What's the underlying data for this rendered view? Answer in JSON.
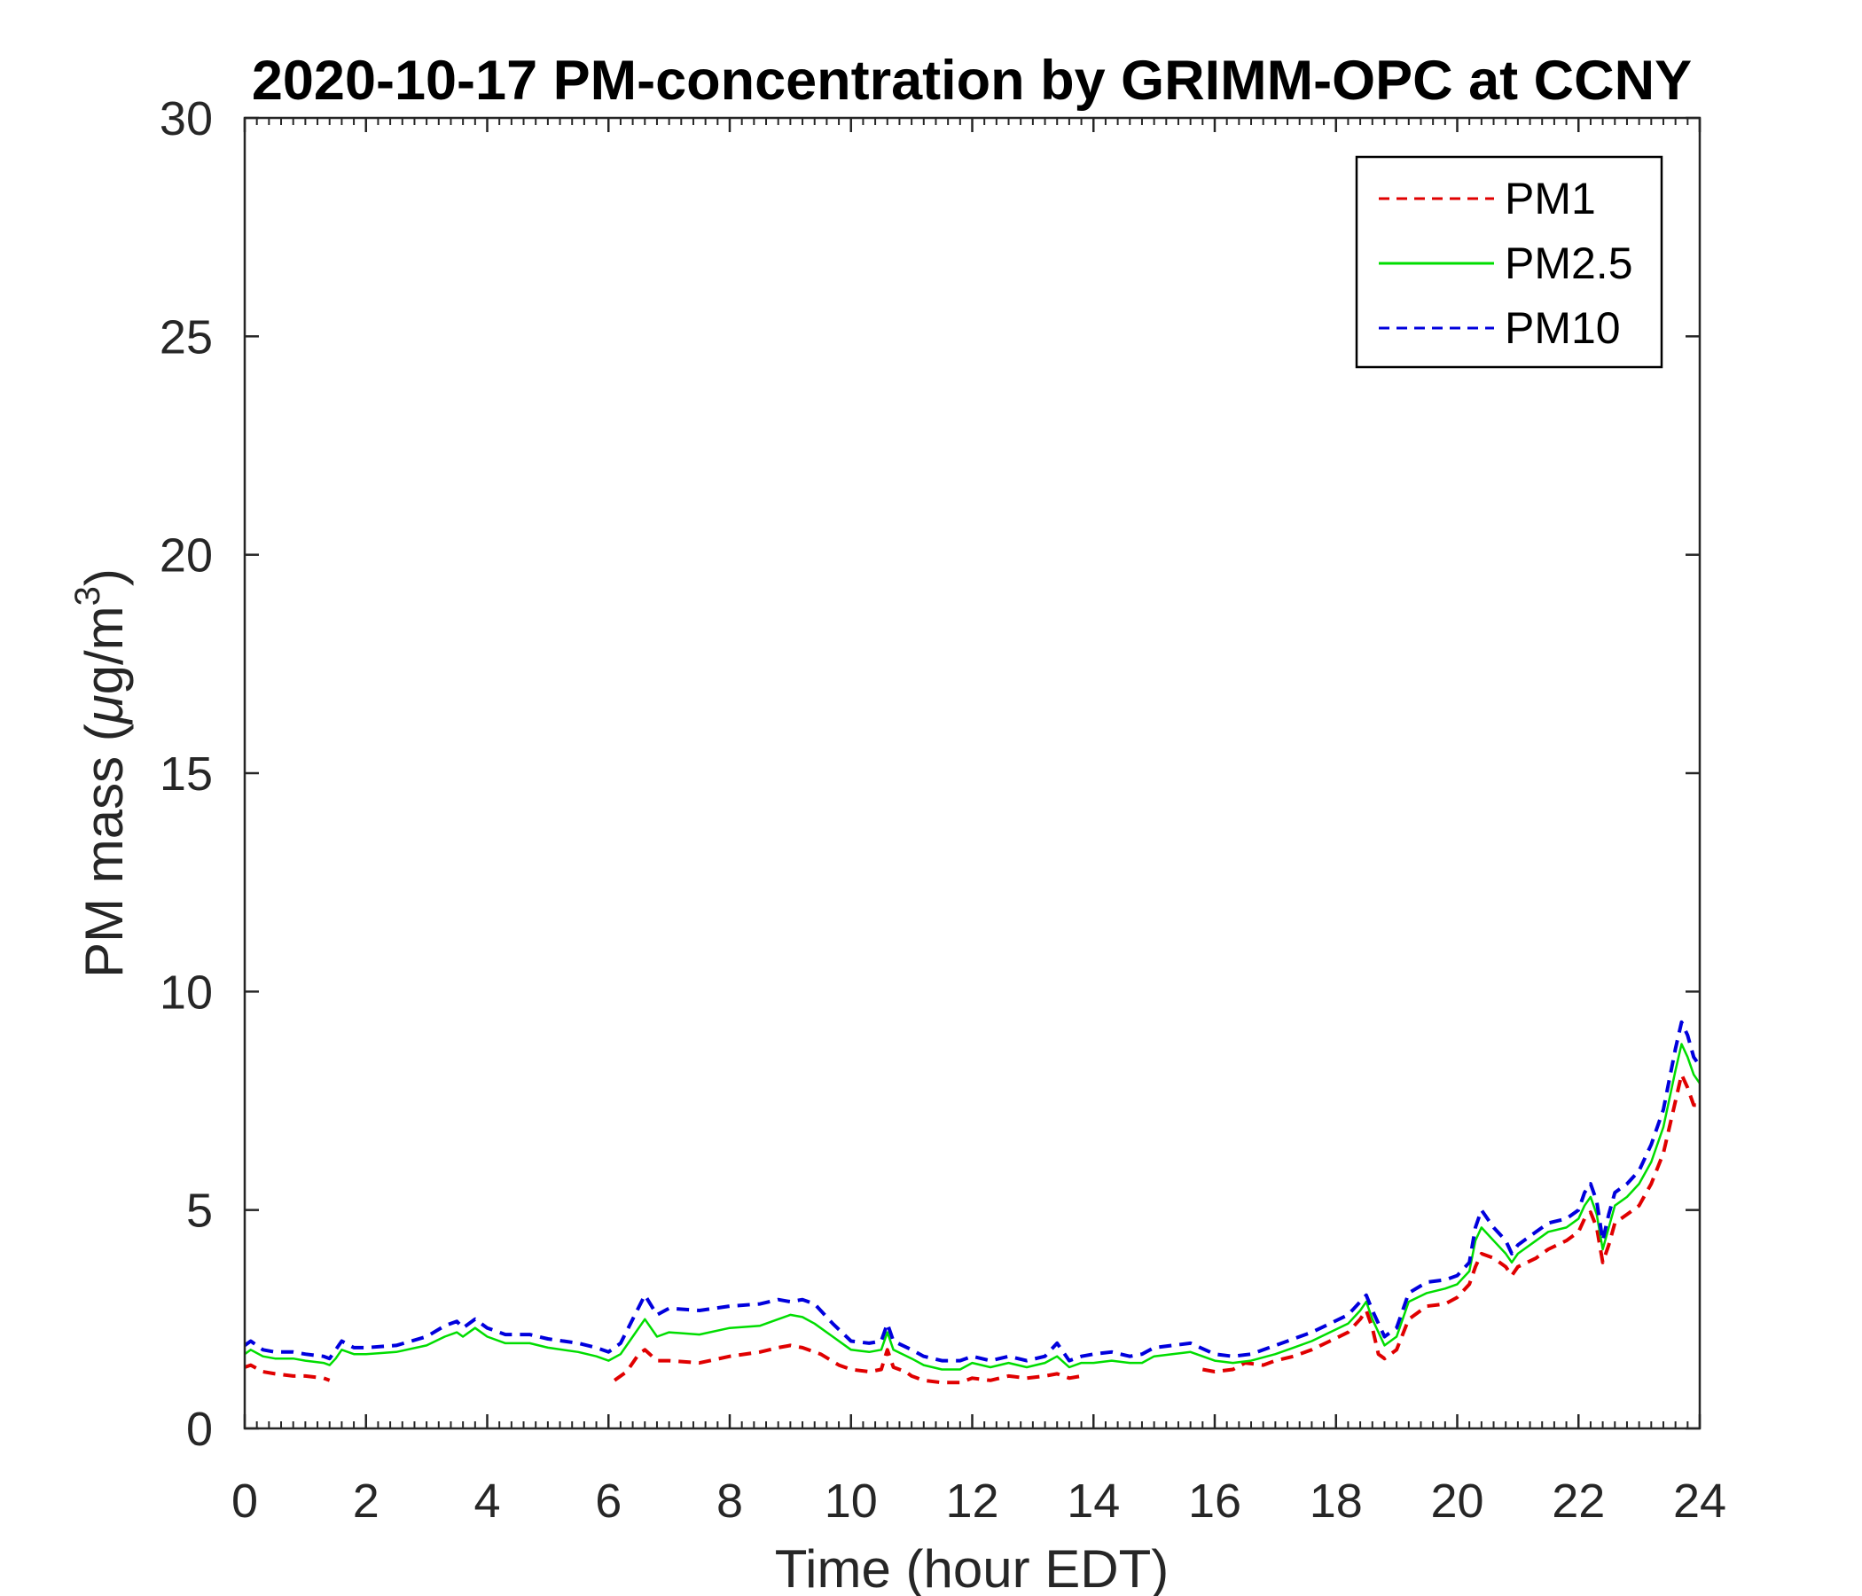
{
  "chart_data": {
    "type": "line",
    "title": "2020-10-17 PM-concentration by GRIMM-OPC at CCNY",
    "xlabel": "Time (hour EDT)",
    "ylabel_main": "PM mass (",
    "ylabel_mu": "μ",
    "ylabel_unit": "g/m",
    "ylabel_sup": "3",
    "ylabel_close": ")",
    "xlim": [
      0,
      24
    ],
    "ylim": [
      0,
      30
    ],
    "x_ticks": [
      0,
      2,
      4,
      6,
      8,
      10,
      12,
      14,
      16,
      18,
      20,
      22,
      24
    ],
    "y_ticks": [
      0,
      5,
      10,
      15,
      20,
      25,
      30
    ],
    "x_tick_labels": [
      "0",
      "2",
      "4",
      "6",
      "8",
      "10",
      "12",
      "14",
      "16",
      "18",
      "20",
      "22",
      "24"
    ],
    "y_tick_labels": [
      "0",
      "5",
      "10",
      "15",
      "20",
      "25",
      "30"
    ],
    "grid": false,
    "legend_position": "top-right",
    "series": [
      {
        "name": "PM1",
        "color": "#e00000",
        "style": "dashed",
        "points": [
          [
            0,
            1.4
          ],
          [
            0.1,
            1.45
          ],
          [
            0.3,
            1.3
          ],
          [
            0.5,
            1.25
          ],
          [
            0.8,
            1.2
          ],
          [
            1.0,
            1.2
          ],
          [
            1.3,
            1.15
          ],
          [
            1.4,
            1.1
          ],
          null,
          [
            6.1,
            1.1
          ],
          [
            6.3,
            1.3
          ],
          [
            6.5,
            1.7
          ],
          [
            6.6,
            1.8
          ],
          [
            6.8,
            1.55
          ],
          [
            7.0,
            1.55
          ],
          [
            7.5,
            1.5
          ],
          [
            8.0,
            1.65
          ],
          [
            8.5,
            1.75
          ],
          [
            8.8,
            1.85
          ],
          [
            9.0,
            1.9
          ],
          [
            9.2,
            1.85
          ],
          [
            9.5,
            1.7
          ],
          [
            9.8,
            1.45
          ],
          [
            10.0,
            1.35
          ],
          [
            10.3,
            1.3
          ],
          [
            10.5,
            1.35
          ],
          [
            10.6,
            1.8
          ],
          [
            10.7,
            1.4
          ],
          [
            10.9,
            1.3
          ],
          [
            11.0,
            1.2
          ],
          [
            11.2,
            1.1
          ],
          [
            11.5,
            1.05
          ],
          [
            11.8,
            1.05
          ],
          [
            12.0,
            1.15
          ],
          [
            12.3,
            1.1
          ],
          [
            12.6,
            1.2
          ],
          [
            12.9,
            1.15
          ],
          [
            13.2,
            1.2
          ],
          [
            13.4,
            1.25
          ],
          [
            13.6,
            1.15
          ],
          [
            13.8,
            1.2
          ],
          null,
          [
            15.8,
            1.35
          ],
          [
            16.0,
            1.3
          ],
          [
            16.3,
            1.35
          ],
          [
            16.5,
            1.5
          ],
          [
            16.8,
            1.45
          ],
          [
            17.0,
            1.55
          ],
          [
            17.3,
            1.65
          ],
          [
            17.6,
            1.8
          ],
          [
            17.9,
            2.0
          ],
          [
            18.2,
            2.2
          ],
          [
            18.4,
            2.5
          ],
          [
            18.5,
            2.7
          ],
          [
            18.6,
            2.3
          ],
          [
            18.7,
            1.7
          ],
          [
            18.8,
            1.6
          ],
          [
            19.0,
            1.8
          ],
          [
            19.2,
            2.5
          ],
          [
            19.5,
            2.8
          ],
          [
            19.8,
            2.85
          ],
          [
            20.0,
            3.0
          ],
          [
            20.2,
            3.3
          ],
          [
            20.3,
            3.7
          ],
          [
            20.4,
            4.0
          ],
          [
            20.6,
            3.9
          ],
          [
            20.8,
            3.7
          ],
          [
            20.9,
            3.5
          ],
          [
            21.0,
            3.7
          ],
          [
            21.3,
            3.9
          ],
          [
            21.5,
            4.1
          ],
          [
            21.8,
            4.3
          ],
          [
            22.0,
            4.5
          ],
          [
            22.1,
            4.8
          ],
          [
            22.2,
            4.95
          ],
          [
            22.3,
            4.6
          ],
          [
            22.4,
            3.8
          ],
          [
            22.5,
            4.2
          ],
          [
            22.6,
            4.7
          ],
          [
            22.8,
            4.9
          ],
          [
            23.0,
            5.1
          ],
          [
            23.2,
            5.6
          ],
          [
            23.4,
            6.3
          ],
          [
            23.6,
            7.5
          ],
          [
            23.7,
            8.1
          ],
          [
            23.8,
            7.8
          ],
          [
            23.9,
            7.4
          ],
          [
            24.0,
            7.4
          ]
        ]
      },
      {
        "name": "PM2.5",
        "color": "#00dd00",
        "style": "solid",
        "points": [
          [
            0,
            1.7
          ],
          [
            0.1,
            1.8
          ],
          [
            0.3,
            1.65
          ],
          [
            0.5,
            1.6
          ],
          [
            0.8,
            1.6
          ],
          [
            1.0,
            1.55
          ],
          [
            1.3,
            1.5
          ],
          [
            1.4,
            1.45
          ],
          [
            1.5,
            1.6
          ],
          [
            1.6,
            1.8
          ],
          [
            1.8,
            1.7
          ],
          [
            2.0,
            1.7
          ],
          [
            2.5,
            1.75
          ],
          [
            3.0,
            1.9
          ],
          [
            3.3,
            2.1
          ],
          [
            3.5,
            2.2
          ],
          [
            3.6,
            2.1
          ],
          [
            3.8,
            2.3
          ],
          [
            4.0,
            2.1
          ],
          [
            4.3,
            1.95
          ],
          [
            4.7,
            1.95
          ],
          [
            5.0,
            1.85
          ],
          [
            5.5,
            1.75
          ],
          [
            5.8,
            1.65
          ],
          [
            6.0,
            1.55
          ],
          [
            6.2,
            1.7
          ],
          [
            6.4,
            2.1
          ],
          [
            6.6,
            2.5
          ],
          [
            6.8,
            2.1
          ],
          [
            7.0,
            2.2
          ],
          [
            7.5,
            2.15
          ],
          [
            8.0,
            2.3
          ],
          [
            8.5,
            2.35
          ],
          [
            8.8,
            2.5
          ],
          [
            9.0,
            2.6
          ],
          [
            9.2,
            2.55
          ],
          [
            9.4,
            2.4
          ],
          [
            9.7,
            2.1
          ],
          [
            10.0,
            1.8
          ],
          [
            10.3,
            1.75
          ],
          [
            10.5,
            1.8
          ],
          [
            10.6,
            2.2
          ],
          [
            10.7,
            1.8
          ],
          [
            11.0,
            1.6
          ],
          [
            11.2,
            1.45
          ],
          [
            11.5,
            1.35
          ],
          [
            11.8,
            1.35
          ],
          [
            12.0,
            1.5
          ],
          [
            12.3,
            1.4
          ],
          [
            12.6,
            1.5
          ],
          [
            12.9,
            1.4
          ],
          [
            13.2,
            1.5
          ],
          [
            13.4,
            1.65
          ],
          [
            13.6,
            1.4
          ],
          [
            13.8,
            1.5
          ],
          [
            14.0,
            1.5
          ],
          [
            14.3,
            1.55
          ],
          [
            14.6,
            1.5
          ],
          [
            14.8,
            1.5
          ],
          [
            15.0,
            1.65
          ],
          [
            15.3,
            1.7
          ],
          [
            15.6,
            1.75
          ],
          [
            16.0,
            1.55
          ],
          [
            16.3,
            1.5
          ],
          [
            16.6,
            1.55
          ],
          [
            17.0,
            1.7
          ],
          [
            17.3,
            1.85
          ],
          [
            17.6,
            2.0
          ],
          [
            17.9,
            2.2
          ],
          [
            18.2,
            2.4
          ],
          [
            18.4,
            2.7
          ],
          [
            18.5,
            2.9
          ],
          [
            18.6,
            2.5
          ],
          [
            18.8,
            1.9
          ],
          [
            19.0,
            2.1
          ],
          [
            19.2,
            2.9
          ],
          [
            19.5,
            3.1
          ],
          [
            19.8,
            3.2
          ],
          [
            20.0,
            3.3
          ],
          [
            20.2,
            3.6
          ],
          [
            20.3,
            4.3
          ],
          [
            20.4,
            4.6
          ],
          [
            20.6,
            4.3
          ],
          [
            20.8,
            4.0
          ],
          [
            20.9,
            3.8
          ],
          [
            21.0,
            4.0
          ],
          [
            21.3,
            4.3
          ],
          [
            21.5,
            4.5
          ],
          [
            21.8,
            4.6
          ],
          [
            22.0,
            4.8
          ],
          [
            22.1,
            5.1
          ],
          [
            22.2,
            5.3
          ],
          [
            22.3,
            4.9
          ],
          [
            22.4,
            4.1
          ],
          [
            22.5,
            4.6
          ],
          [
            22.6,
            5.1
          ],
          [
            22.8,
            5.3
          ],
          [
            23.0,
            5.6
          ],
          [
            23.2,
            6.1
          ],
          [
            23.4,
            6.9
          ],
          [
            23.6,
            8.2
          ],
          [
            23.7,
            8.8
          ],
          [
            23.8,
            8.5
          ],
          [
            23.9,
            8.1
          ],
          [
            24.0,
            7.9
          ]
        ]
      },
      {
        "name": "PM10",
        "color": "#0000dd",
        "style": "dashed",
        "points": [
          [
            0,
            1.9
          ],
          [
            0.1,
            2.0
          ],
          [
            0.3,
            1.8
          ],
          [
            0.5,
            1.75
          ],
          [
            0.8,
            1.75
          ],
          [
            1.0,
            1.7
          ],
          [
            1.3,
            1.65
          ],
          [
            1.4,
            1.6
          ],
          [
            1.5,
            1.8
          ],
          [
            1.6,
            2.0
          ],
          [
            1.8,
            1.85
          ],
          [
            2.0,
            1.85
          ],
          [
            2.5,
            1.9
          ],
          [
            3.0,
            2.1
          ],
          [
            3.3,
            2.35
          ],
          [
            3.5,
            2.45
          ],
          [
            3.6,
            2.3
          ],
          [
            3.8,
            2.5
          ],
          [
            4.0,
            2.3
          ],
          [
            4.3,
            2.15
          ],
          [
            4.7,
            2.15
          ],
          [
            5.0,
            2.05
          ],
          [
            5.5,
            1.95
          ],
          [
            5.8,
            1.85
          ],
          [
            6.0,
            1.75
          ],
          [
            6.2,
            1.95
          ],
          [
            6.4,
            2.5
          ],
          [
            6.6,
            3.05
          ],
          [
            6.8,
            2.6
          ],
          [
            7.0,
            2.75
          ],
          [
            7.5,
            2.7
          ],
          [
            8.0,
            2.8
          ],
          [
            8.5,
            2.85
          ],
          [
            8.8,
            2.95
          ],
          [
            9.0,
            2.9
          ],
          [
            9.2,
            2.95
          ],
          [
            9.4,
            2.85
          ],
          [
            9.7,
            2.4
          ],
          [
            10.0,
            2.0
          ],
          [
            10.3,
            1.95
          ],
          [
            10.5,
            2.0
          ],
          [
            10.6,
            2.4
          ],
          [
            10.7,
            2.0
          ],
          [
            11.0,
            1.8
          ],
          [
            11.2,
            1.65
          ],
          [
            11.5,
            1.55
          ],
          [
            11.8,
            1.55
          ],
          [
            12.0,
            1.65
          ],
          [
            12.3,
            1.55
          ],
          [
            12.6,
            1.65
          ],
          [
            12.9,
            1.55
          ],
          [
            13.2,
            1.65
          ],
          [
            13.4,
            1.95
          ],
          [
            13.6,
            1.55
          ],
          [
            13.8,
            1.65
          ],
          [
            14.0,
            1.7
          ],
          [
            14.3,
            1.75
          ],
          [
            14.6,
            1.65
          ],
          [
            14.8,
            1.7
          ],
          [
            15.0,
            1.85
          ],
          [
            15.3,
            1.9
          ],
          [
            15.6,
            1.95
          ],
          [
            16.0,
            1.7
          ],
          [
            16.3,
            1.65
          ],
          [
            16.6,
            1.7
          ],
          [
            17.0,
            1.9
          ],
          [
            17.3,
            2.05
          ],
          [
            17.6,
            2.2
          ],
          [
            17.9,
            2.4
          ],
          [
            18.2,
            2.6
          ],
          [
            18.4,
            2.9
          ],
          [
            18.5,
            3.05
          ],
          [
            18.6,
            2.7
          ],
          [
            18.8,
            2.1
          ],
          [
            19.0,
            2.3
          ],
          [
            19.2,
            3.1
          ],
          [
            19.5,
            3.35
          ],
          [
            19.8,
            3.4
          ],
          [
            20.0,
            3.5
          ],
          [
            20.2,
            3.8
          ],
          [
            20.3,
            4.6
          ],
          [
            20.4,
            5.0
          ],
          [
            20.6,
            4.6
          ],
          [
            20.8,
            4.3
          ],
          [
            20.9,
            4.0
          ],
          [
            21.0,
            4.2
          ],
          [
            21.3,
            4.5
          ],
          [
            21.5,
            4.7
          ],
          [
            21.8,
            4.8
          ],
          [
            22.0,
            5.0
          ],
          [
            22.1,
            5.4
          ],
          [
            22.2,
            5.6
          ],
          [
            22.3,
            5.2
          ],
          [
            22.4,
            4.3
          ],
          [
            22.5,
            4.9
          ],
          [
            22.6,
            5.4
          ],
          [
            22.8,
            5.6
          ],
          [
            23.0,
            5.9
          ],
          [
            23.2,
            6.5
          ],
          [
            23.4,
            7.3
          ],
          [
            23.6,
            8.7
          ],
          [
            23.7,
            9.3
          ],
          [
            23.8,
            9.0
          ],
          [
            23.9,
            8.5
          ],
          [
            24.0,
            8.3
          ]
        ]
      }
    ]
  }
}
